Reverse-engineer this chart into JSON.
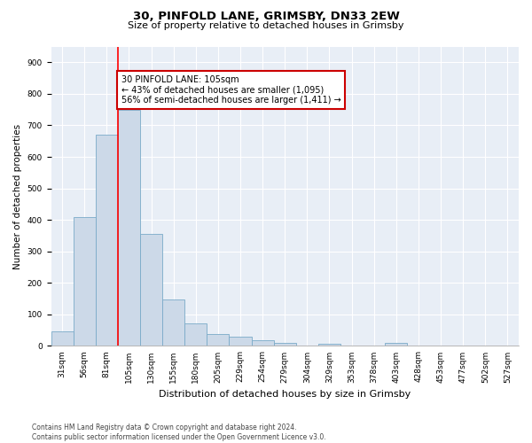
{
  "title1": "30, PINFOLD LANE, GRIMSBY, DN33 2EW",
  "title2": "Size of property relative to detached houses in Grimsby",
  "xlabel": "Distribution of detached houses by size in Grimsby",
  "ylabel": "Number of detached properties",
  "bins": [
    "31sqm",
    "56sqm",
    "81sqm",
    "105sqm",
    "130sqm",
    "155sqm",
    "180sqm",
    "205sqm",
    "229sqm",
    "254sqm",
    "279sqm",
    "304sqm",
    "329sqm",
    "353sqm",
    "378sqm",
    "403sqm",
    "428sqm",
    "453sqm",
    "477sqm",
    "502sqm",
    "527sqm"
  ],
  "bar_values": [
    47,
    410,
    670,
    750,
    355,
    148,
    72,
    37,
    28,
    18,
    10,
    0,
    7,
    0,
    0,
    10,
    0,
    0,
    0,
    0,
    0
  ],
  "bar_color": "#ccd9e8",
  "bar_edge_color": "#7aaac8",
  "red_line_bin_index": 3,
  "annotation_text": "30 PINFOLD LANE: 105sqm\n← 43% of detached houses are smaller (1,095)\n56% of semi-detached houses are larger (1,411) →",
  "annotation_box_facecolor": "#ffffff",
  "annotation_box_edgecolor": "#cc0000",
  "ylim": [
    0,
    950
  ],
  "yticks": [
    0,
    100,
    200,
    300,
    400,
    500,
    600,
    700,
    800,
    900
  ],
  "footnote": "Contains HM Land Registry data © Crown copyright and database right 2024.\nContains public sector information licensed under the Open Government Licence v3.0.",
  "fig_bg_color": "#ffffff",
  "plot_bg_color": "#e8eef6",
  "grid_color": "#ffffff",
  "title1_fontsize": 9.5,
  "title2_fontsize": 8,
  "xlabel_fontsize": 8,
  "ylabel_fontsize": 7.5,
  "tick_fontsize": 6.5,
  "annotation_fontsize": 7,
  "footnote_fontsize": 5.5
}
